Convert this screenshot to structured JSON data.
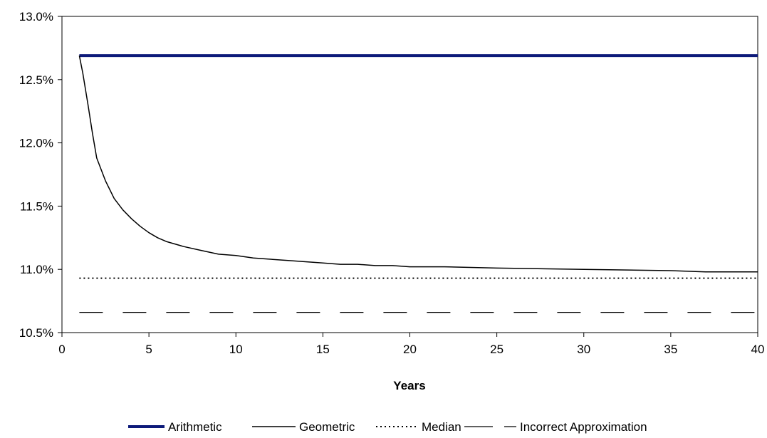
{
  "chart_data": {
    "type": "line",
    "title": "",
    "xlabel": "Years",
    "ylabel": "",
    "xlim": [
      0,
      40
    ],
    "ylim": [
      10.5,
      13.0
    ],
    "x_ticks": [
      0,
      5,
      10,
      15,
      20,
      25,
      30,
      35,
      40
    ],
    "y_ticks": [
      "10.5%",
      "11.0%",
      "11.5%",
      "12.0%",
      "12.5%",
      "13.0%"
    ],
    "y_tick_values": [
      10.5,
      11.0,
      11.5,
      12.0,
      12.5,
      13.0
    ],
    "grid": false,
    "legend_position": "bottom",
    "series": [
      {
        "name": "Arithmetic",
        "style": "solid-thick",
        "color": "#0d1a7a",
        "x": [
          1,
          40
        ],
        "y": [
          12.69,
          12.69
        ]
      },
      {
        "name": "Geometric",
        "style": "solid",
        "color": "#000000",
        "x": [
          1,
          1.2,
          1.5,
          1.75,
          2,
          2.5,
          3,
          3.5,
          4,
          4.5,
          5,
          5.5,
          6,
          7,
          8,
          9,
          10,
          11,
          12,
          13,
          14,
          15,
          16,
          17,
          18,
          19,
          20,
          22,
          25,
          30,
          35,
          37,
          40
        ],
        "y": [
          12.69,
          12.55,
          12.3,
          12.08,
          11.88,
          11.7,
          11.56,
          11.47,
          11.4,
          11.34,
          11.29,
          11.25,
          11.22,
          11.18,
          11.15,
          11.12,
          11.11,
          11.09,
          11.08,
          11.07,
          11.06,
          11.05,
          11.04,
          11.04,
          11.03,
          11.03,
          11.02,
          11.02,
          11.01,
          11.0,
          10.99,
          10.98,
          10.98
        ]
      },
      {
        "name": "Median",
        "style": "dotted",
        "color": "#000000",
        "x": [
          1,
          40
        ],
        "y": [
          10.93,
          10.93
        ]
      },
      {
        "name": "Incorrect Approximation",
        "style": "dashed",
        "color": "#000000",
        "x": [
          1,
          40
        ],
        "y": [
          10.66,
          10.66
        ]
      }
    ]
  }
}
